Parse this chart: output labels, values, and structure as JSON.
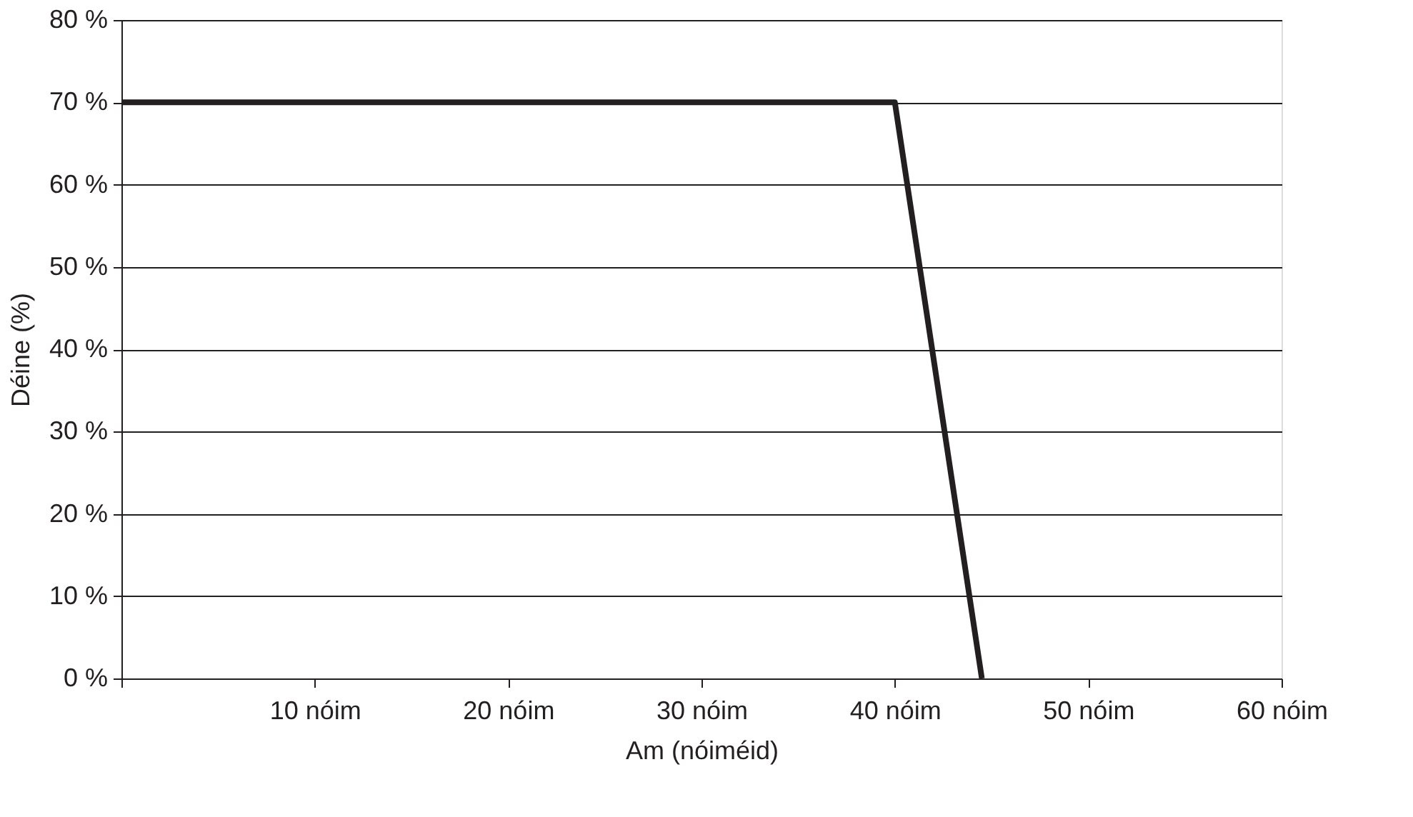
{
  "chart_data": {
    "type": "line",
    "xlabel": "Am (nóiméid)",
    "ylabel": "Déine (%)",
    "series": [
      {
        "color": "#231f20",
        "x": [
          0,
          40,
          44.5
        ],
        "values": [
          70,
          70,
          0
        ]
      }
    ],
    "xlim": [
      0,
      60
    ],
    "xticks": [
      {
        "value": 0,
        "label": null
      },
      {
        "value": 10,
        "label": "10 nóim"
      },
      {
        "value": 20,
        "label": "20 nóim"
      },
      {
        "value": 30,
        "label": "30 nóim"
      },
      {
        "value": 40,
        "label": "40 nóim"
      },
      {
        "value": 50,
        "label": "50 nóim"
      },
      {
        "value": 60,
        "label": "60 nóim"
      }
    ],
    "ylim": [
      0,
      80
    ],
    "yticks": [
      {
        "value": 0,
        "label": "0 %"
      },
      {
        "value": 10,
        "label": "10 %"
      },
      {
        "value": 20,
        "label": "20 %"
      },
      {
        "value": 30,
        "label": "30 %"
      },
      {
        "value": 40,
        "label": "40 %"
      },
      {
        "value": 50,
        "label": "50 %"
      },
      {
        "value": 60,
        "label": "60 %"
      },
      {
        "value": 70,
        "label": "70 %"
      },
      {
        "value": 80,
        "label": "80 %"
      }
    ],
    "grid": "y",
    "legend": false,
    "marker": "none",
    "line_style": "solid"
  }
}
